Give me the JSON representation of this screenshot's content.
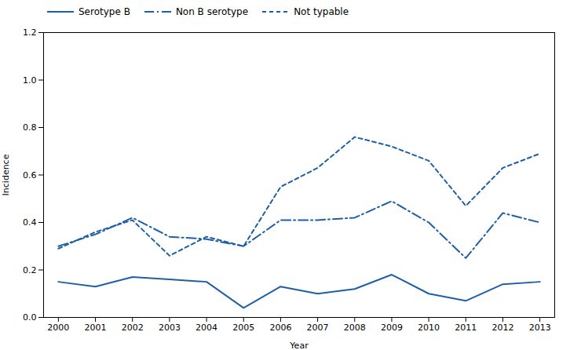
{
  "chart_data": {
    "type": "line",
    "xlabel": "Year",
    "ylabel": "Incidence",
    "x": [
      2000,
      2001,
      2002,
      2003,
      2004,
      2005,
      2006,
      2007,
      2008,
      2009,
      2010,
      2011,
      2012,
      2013
    ],
    "series": [
      {
        "name": "Serotype B",
        "color": "#1f5fa6",
        "line_style": "solid",
        "values": [
          0.15,
          0.13,
          0.17,
          0.16,
          0.15,
          0.04,
          0.13,
          0.1,
          0.12,
          0.18,
          0.1,
          0.07,
          0.14,
          0.15
        ]
      },
      {
        "name": "Non B serotype",
        "color": "#1f5fa6",
        "line_style": "dashdot",
        "values": [
          0.3,
          0.35,
          0.42,
          0.34,
          0.33,
          0.3,
          0.41,
          0.41,
          0.42,
          0.49,
          0.4,
          0.25,
          0.44,
          0.4
        ]
      },
      {
        "name": "Not typable",
        "color": "#1f5fa6",
        "line_style": "dashed",
        "values": [
          0.29,
          0.36,
          0.41,
          0.26,
          0.34,
          0.3,
          0.55,
          0.63,
          0.76,
          0.72,
          0.66,
          0.47,
          0.63,
          0.69
        ]
      }
    ],
    "xlim": [
      1999.6,
      2013.4
    ],
    "xticks": [
      2000,
      2001,
      2002,
      2003,
      2004,
      2005,
      2006,
      2007,
      2008,
      2009,
      2010,
      2011,
      2012,
      2013
    ],
    "ylim": [
      0.0,
      1.2
    ],
    "yticks": [
      {
        "value": 0.0,
        "label": "0.0"
      },
      0.2,
      0.4,
      0.6,
      0.8,
      {
        "value": 1.0,
        "label": "1.0"
      },
      1.2
    ],
    "legend": "upper left",
    "grid": false
  }
}
